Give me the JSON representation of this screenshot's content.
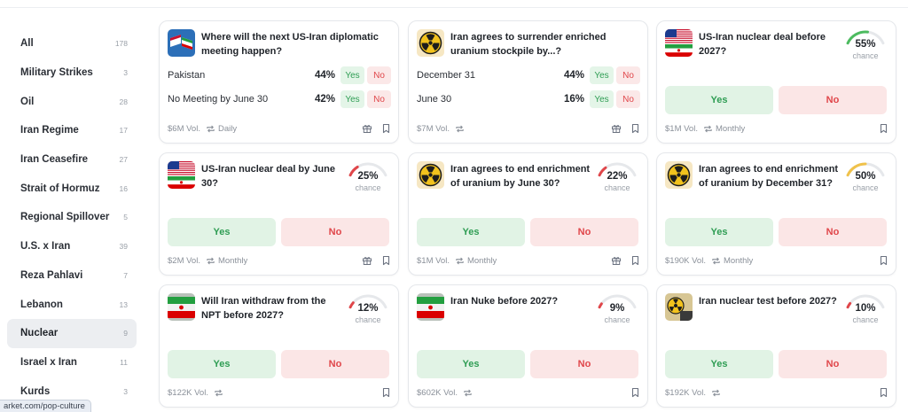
{
  "url_tooltip": "arket.com/pop-culture",
  "sidebar": {
    "items": [
      {
        "label": "All",
        "count": "178"
      },
      {
        "label": "Military Strikes",
        "count": "3"
      },
      {
        "label": "Oil",
        "count": "28"
      },
      {
        "label": "Iran Regime",
        "count": "17"
      },
      {
        "label": "Iran Ceasefire",
        "count": "27"
      },
      {
        "label": "Strait of Hormuz",
        "count": "16"
      },
      {
        "label": "Regional Spillover",
        "count": "5"
      },
      {
        "label": "U.S. x Iran",
        "count": "39"
      },
      {
        "label": "Reza Pahlavi",
        "count": "7"
      },
      {
        "label": "Lebanon",
        "count": "13"
      },
      {
        "label": "Nuclear",
        "count": "9"
      },
      {
        "label": "Israel x Iran",
        "count": "11"
      },
      {
        "label": "Kurds",
        "count": "3"
      }
    ],
    "active": "Nuclear"
  },
  "cards": [
    {
      "title": "Where will the next US-Iran diplomatic meeting happen?",
      "thumb": "flags-icon",
      "options": [
        {
          "name": "Pakistan",
          "pct": "44%",
          "yes": "Yes",
          "no": "No"
        },
        {
          "name": "No Meeting by June 30",
          "pct": "42%",
          "yes": "Yes",
          "no": "No"
        }
      ],
      "volume": "$6M Vol.",
      "recurrence": "Daily",
      "gift": true
    },
    {
      "title": "Iran agrees to surrender enriched uranium stockpile by...?",
      "thumb": "radiation-icon",
      "options": [
        {
          "name": "December 31",
          "pct": "44%",
          "yes": "Yes",
          "no": "No"
        },
        {
          "name": "June 30",
          "pct": "16%",
          "yes": "Yes",
          "no": "No"
        }
      ],
      "volume": "$7M Vol.",
      "recurrence": "",
      "gift": true
    },
    {
      "title": "US-Iran nuclear deal before 2027?",
      "thumb": "us-iran-flags-icon",
      "chance": 55,
      "pct": "55%",
      "chance_label": "chance",
      "gauge_color": "#4cbb5f",
      "yes": "Yes",
      "no": "No",
      "volume": "$1M Vol.",
      "recurrence": "Monthly",
      "gift": false
    },
    {
      "title": "US-Iran nuclear deal by June 30?",
      "thumb": "us-iran-flags-icon",
      "chance": 25,
      "pct": "25%",
      "chance_label": "chance",
      "gauge_color": "#e0464a",
      "yes": "Yes",
      "no": "No",
      "volume": "$2M Vol.",
      "recurrence": "Monthly",
      "gift": true
    },
    {
      "title": "Iran agrees to end enrichment of uranium by June 30?",
      "thumb": "radiation-icon",
      "chance": 22,
      "pct": "22%",
      "chance_label": "chance",
      "gauge_color": "#e0464a",
      "yes": "Yes",
      "no": "No",
      "volume": "$1M Vol.",
      "recurrence": "Monthly",
      "gift": true
    },
    {
      "title": "Iran agrees to end enrichment of uranium by December 31?",
      "thumb": "radiation-icon",
      "chance": 50,
      "pct": "50%",
      "chance_label": "chance",
      "gauge_color": "#f0c24b",
      "yes": "Yes",
      "no": "No",
      "volume": "$190K Vol.",
      "recurrence": "Monthly",
      "gift": false
    },
    {
      "title": "Will Iran withdraw from the NPT before 2027?",
      "thumb": "iran-flag-icon",
      "chance": 12,
      "pct": "12%",
      "chance_label": "chance",
      "gauge_color": "#e0464a",
      "yes": "Yes",
      "no": "No",
      "volume": "$122K Vol.",
      "recurrence": "",
      "gift": false
    },
    {
      "title": "Iran Nuke before 2027?",
      "thumb": "iran-flag-icon",
      "chance": 9,
      "pct": "9%",
      "chance_label": "chance",
      "gauge_color": "#e0464a",
      "yes": "Yes",
      "no": "No",
      "volume": "$602K Vol.",
      "recurrence": "",
      "gift": false
    },
    {
      "title": "Iran nuclear test before 2027?",
      "thumb": "nuclear-test-icon",
      "chance": 10,
      "pct": "10%",
      "chance_label": "chance",
      "gauge_color": "#e0464a",
      "yes": "Yes",
      "no": "No",
      "volume": "$192K Vol.",
      "recurrence": "",
      "gift": false
    }
  ]
}
